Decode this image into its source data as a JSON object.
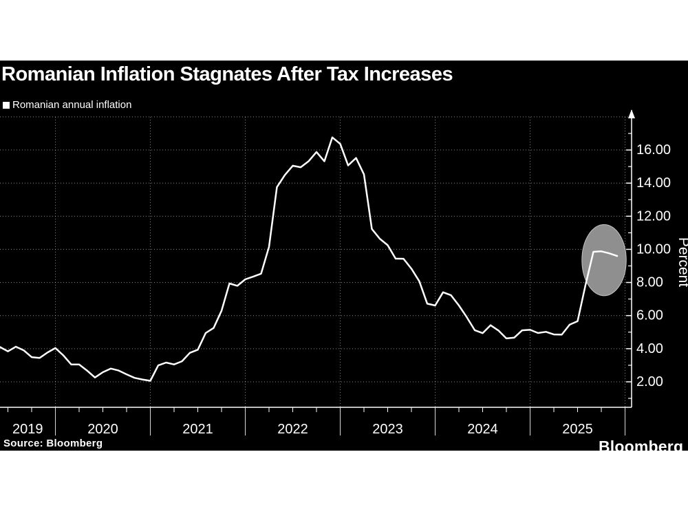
{
  "header": {
    "title": "Romanian Inflation Stagnates After Tax Increases"
  },
  "legend": {
    "label": "Romanian annual inflation",
    "marker_color": "#ffffff"
  },
  "footer": {
    "source": "Source: Bloomberg",
    "brand": "Bloomberg"
  },
  "colors": {
    "background": "#000000",
    "page": "#ffffff",
    "line": "#ffffff",
    "text": "#ffffff",
    "grid": "rgba(255,255,255,0.55)",
    "axis": "#ffffff",
    "divider": "rgba(255,255,255,0.85)",
    "ellipse_fill": "#8f8f8f",
    "ellipse_stroke": "#c4c4c4"
  },
  "chart_data": {
    "type": "line",
    "title": "Romanian Inflation Stagnates After Tax Increases",
    "series_name": "Romanian annual inflation",
    "ylabel": "Percent",
    "xlabel": "",
    "grid": "dotted",
    "legend_position": "top-left",
    "ylim": [
      0.5,
      18
    ],
    "y_ticks": [
      2,
      4,
      6,
      8,
      10,
      12,
      14,
      16
    ],
    "y_tick_labels": [
      "2.00",
      "4.00",
      "6.00",
      "8.00",
      "10.00",
      "12.00",
      "14.00",
      "16.00"
    ],
    "x_year_labels": [
      "2019",
      "2020",
      "2021",
      "2022",
      "2023",
      "2024",
      "2025"
    ],
    "x": [
      "2019-05",
      "2019-06",
      "2019-07",
      "2019-08",
      "2019-09",
      "2019-10",
      "2019-11",
      "2019-12",
      "2020-01",
      "2020-02",
      "2020-03",
      "2020-04",
      "2020-05",
      "2020-06",
      "2020-07",
      "2020-08",
      "2020-09",
      "2020-10",
      "2020-11",
      "2020-12",
      "2021-01",
      "2021-02",
      "2021-03",
      "2021-04",
      "2021-05",
      "2021-06",
      "2021-07",
      "2021-08",
      "2021-09",
      "2021-10",
      "2021-11",
      "2021-12",
      "2022-01",
      "2022-02",
      "2022-03",
      "2022-04",
      "2022-05",
      "2022-06",
      "2022-07",
      "2022-08",
      "2022-09",
      "2022-10",
      "2022-11",
      "2022-12",
      "2023-01",
      "2023-02",
      "2023-03",
      "2023-04",
      "2023-05",
      "2023-06",
      "2023-07",
      "2023-08",
      "2023-09",
      "2023-10",
      "2023-11",
      "2023-12",
      "2024-01",
      "2024-02",
      "2024-03",
      "2024-04",
      "2024-05",
      "2024-06",
      "2024-07",
      "2024-08",
      "2024-09",
      "2024-10",
      "2024-11",
      "2024-12",
      "2025-01",
      "2025-02",
      "2025-03",
      "2025-04",
      "2025-05",
      "2025-06",
      "2025-07",
      "2025-08",
      "2025-09",
      "2025-10",
      "2025-11"
    ],
    "values": [
      4.1,
      3.84,
      4.12,
      3.9,
      3.49,
      3.44,
      3.77,
      4.04,
      3.6,
      3.05,
      3.05,
      2.68,
      2.26,
      2.58,
      2.8,
      2.68,
      2.45,
      2.24,
      2.14,
      2.06,
      2.99,
      3.16,
      3.05,
      3.24,
      3.75,
      3.94,
      4.95,
      5.25,
      6.29,
      7.94,
      7.8,
      8.19,
      8.35,
      8.53,
      10.15,
      13.76,
      14.49,
      15.05,
      14.96,
      15.32,
      15.88,
      15.32,
      16.76,
      16.37,
      15.07,
      15.52,
      14.53,
      11.23,
      10.64,
      10.25,
      9.44,
      9.43,
      8.83,
      8.07,
      6.72,
      6.61,
      7.41,
      7.23,
      6.61,
      5.9,
      5.12,
      4.94,
      5.42,
      5.1,
      4.62,
      4.67,
      5.11,
      5.14,
      4.95,
      5.02,
      4.86,
      4.85,
      5.45,
      5.66,
      7.84,
      9.85,
      9.88,
      9.76,
      9.6
    ],
    "annotation": {
      "shape": "ellipse",
      "center_month": "2025-09",
      "center_value": 9.35,
      "width_months": 5.6,
      "height_value": 4.3,
      "note": "highlights latest readings stagnating near 9.8%"
    }
  }
}
